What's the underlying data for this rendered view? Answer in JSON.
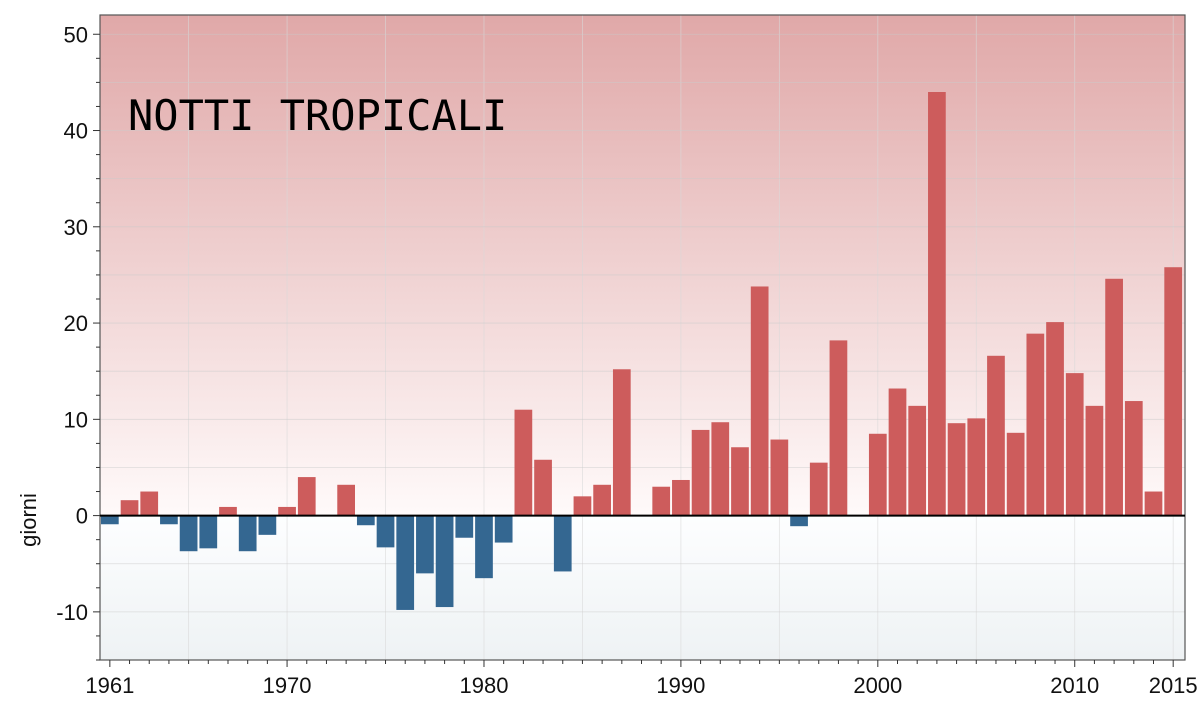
{
  "chart_data": {
    "type": "bar",
    "title": "NOTTI TROPICALI",
    "xlabel": "",
    "ylabel": "giorni",
    "xlim": [
      1960.5,
      1916.0
    ],
    "ylim": [
      -15,
      52
    ],
    "yticks": [
      -10,
      0,
      10,
      20,
      30,
      40,
      50
    ],
    "xticks": [
      1961,
      1970,
      1980,
      1990,
      2000,
      2010,
      2015
    ],
    "grid": true,
    "colors": {
      "positive": "#cd5c5c",
      "negative": "#346791",
      "zero_line": "#000000"
    },
    "x": [
      1961,
      1962,
      1963,
      1964,
      1965,
      1966,
      1967,
      1968,
      1969,
      1970,
      1971,
      1972,
      1973,
      1974,
      1975,
      1976,
      1977,
      1978,
      1979,
      1980,
      1981,
      1982,
      1983,
      1984,
      1985,
      1986,
      1987,
      1988,
      1989,
      1990,
      1991,
      1992,
      1993,
      1994,
      1995,
      1996,
      1997,
      1998,
      1999,
      2000,
      2001,
      2002,
      2003,
      2004,
      2005,
      2006,
      2007,
      2008,
      2009,
      2010,
      2011,
      2012,
      2013,
      2014,
      2015
    ],
    "values": [
      -0.9,
      1.6,
      2.5,
      -0.9,
      -3.7,
      -3.4,
      0.9,
      -3.7,
      -2.0,
      0.9,
      4.0,
      0,
      3.2,
      -1.0,
      -3.3,
      -9.8,
      -6.0,
      -9.5,
      -2.3,
      -6.5,
      -2.8,
      11.0,
      5.8,
      -5.8,
      2.0,
      3.2,
      15.2,
      0,
      3.0,
      3.7,
      8.9,
      9.7,
      7.1,
      23.8,
      7.9,
      -1.1,
      5.5,
      18.2,
      0,
      8.5,
      13.2,
      11.4,
      44.0,
      9.6,
      10.1,
      16.6,
      8.6,
      18.9,
      20.1,
      14.8,
      11.4,
      24.6,
      11.9,
      2.5,
      25.8
    ]
  }
}
